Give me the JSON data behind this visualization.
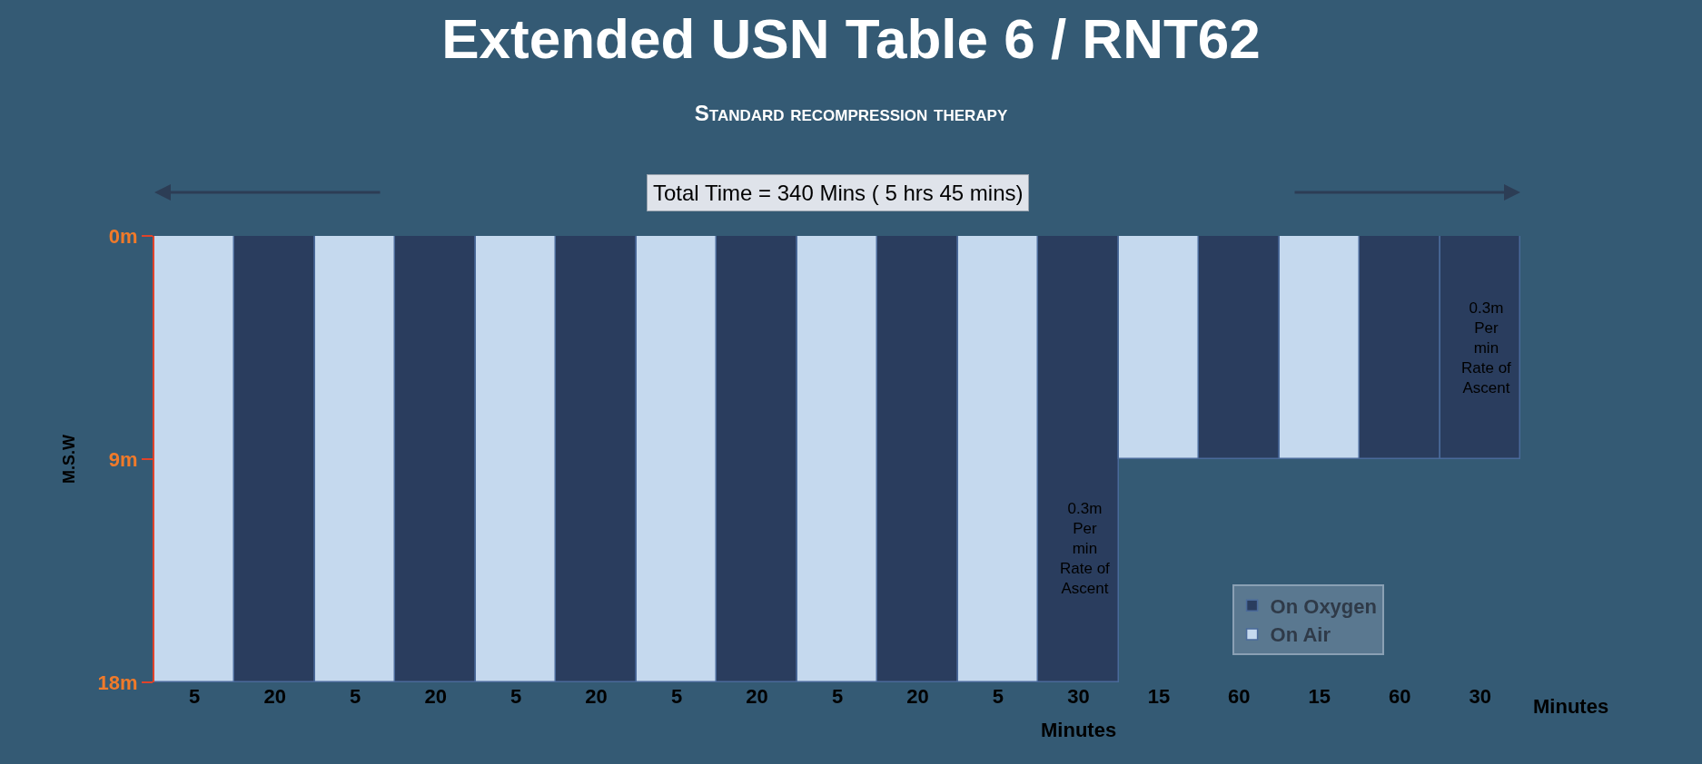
{
  "chart_data": {
    "type": "bar",
    "title": "Extended USN Table 6 / RNT62",
    "subtitle": "Standard recompression therapy",
    "ylabel": "M.S.W",
    "categories": [
      "5",
      "20",
      "5",
      "20",
      "5",
      "20",
      "5",
      "20",
      "5",
      "20",
      "5",
      "30",
      "15",
      "60",
      "15",
      "60",
      "30"
    ],
    "ylim": [
      18,
      0
    ],
    "yticks": [
      {
        "value": 0,
        "label": "0m"
      },
      {
        "value": 9,
        "label": "9m"
      },
      {
        "value": 18,
        "label": "18m"
      }
    ],
    "legend": "bottom right",
    "series": [
      {
        "name": "On Oxygen",
        "color": "#2a3d5e",
        "values": [
          null,
          18,
          null,
          18,
          null,
          18,
          null,
          18,
          null,
          18,
          null,
          18,
          null,
          9,
          null,
          9,
          9
        ]
      },
      {
        "name": "On Air",
        "color": "#c5d9ee",
        "values": [
          18,
          null,
          18,
          null,
          18,
          null,
          18,
          null,
          18,
          null,
          18,
          null,
          9,
          null,
          9,
          null,
          null
        ]
      }
    ],
    "annotations": [
      "Total Time = 340 Mins ( 5 hrs 45 mins)",
      "Minutes",
      "Minutes",
      "0.3m\nPer\nmin\nRate of\nAscent",
      "0.3m\nPer\nmin\nRate of\nAscent"
    ]
  }
}
